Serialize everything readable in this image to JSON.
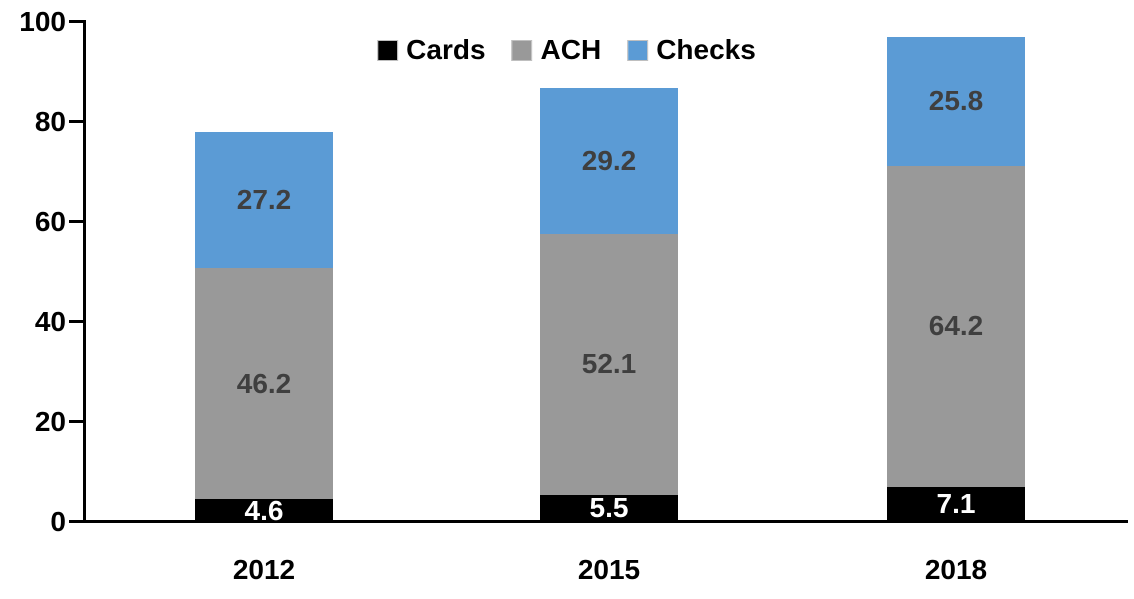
{
  "chart_data": {
    "type": "bar",
    "stacked": true,
    "title": "",
    "xlabel": "",
    "ylabel": "",
    "categories": [
      "2012",
      "2015",
      "2018"
    ],
    "series": [
      {
        "name": "Cards",
        "color": "#000000",
        "label_color": "#ffffff",
        "values": [
          4.6,
          5.5,
          7.1
        ]
      },
      {
        "name": "ACH",
        "color": "#999999",
        "label_color": "#3f3f3f",
        "values": [
          46.2,
          52.1,
          64.2
        ]
      },
      {
        "name": "Checks",
        "color": "#5b9bd5",
        "label_color": "#3f3f3f",
        "values": [
          27.2,
          29.2,
          25.8
        ]
      }
    ],
    "data_labels_visible": true,
    "y_ticks": [
      0,
      20,
      40,
      60,
      80,
      100
    ],
    "ylim": [
      0,
      100
    ],
    "grid": false,
    "legend_position": "top",
    "axis_color": "#000000",
    "background_color": "#ffffff"
  }
}
